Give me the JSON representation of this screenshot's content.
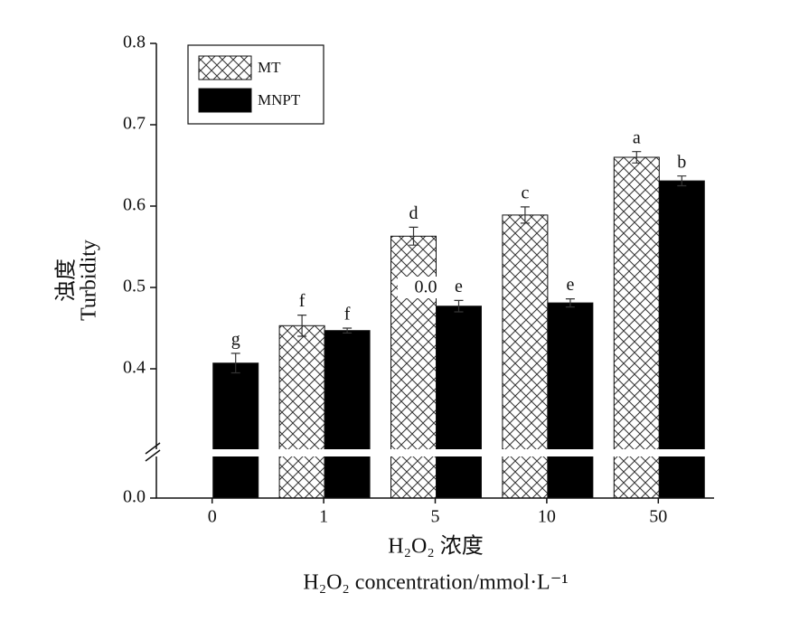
{
  "chart_data": {
    "type": "bar",
    "x_label": "H₂O₂ 浓度",
    "x_label_2": "H₂O₂  concentration/mmol·L⁻¹",
    "y_label": "浊度",
    "y_label_2": "Turbidity",
    "categories": [
      "0",
      "1",
      "5",
      "10",
      "50"
    ],
    "series": [
      {
        "name": "MT",
        "color": "#000000",
        "pattern": "crosshatch",
        "values": [
          null,
          0.453,
          0.563,
          0.589,
          0.66
        ],
        "errors": [
          null,
          0.013,
          0.011,
          0.01,
          0.007
        ],
        "letters": [
          null,
          "f",
          "d",
          "c",
          "a"
        ]
      },
      {
        "name": "MNPT",
        "color": "#000000",
        "pattern": "solid",
        "values": [
          0.407,
          0.447,
          0.477,
          0.481,
          0.631
        ],
        "errors": [
          0.012,
          0.003,
          0.007,
          0.005,
          0.006
        ],
        "letters": [
          "g",
          "f",
          "e",
          "e",
          "b"
        ]
      }
    ],
    "annotation": "0.0",
    "ylim": [
      0,
      0.8
    ],
    "axis_break": 0.3,
    "yticks": [
      {
        "value": 0,
        "label": "0.0"
      },
      0.4,
      0.5,
      0.6,
      0.7,
      0.8
    ],
    "legend": "upper left"
  }
}
